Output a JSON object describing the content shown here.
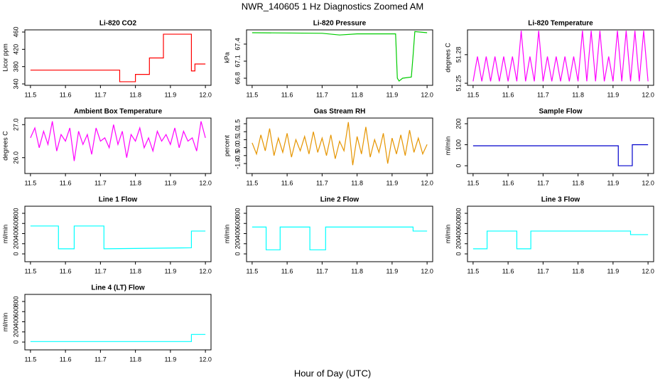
{
  "title": "NWR_140605  1 Hz Diagnostics Zoomed AM",
  "x_label": "Hour of Day (UTC)",
  "chart_data": [
    {
      "type": "line",
      "title": "Li-820 CO2",
      "y_label": "Licor ppm",
      "color": "#ff0000",
      "xlim": [
        11.484,
        12.016
      ],
      "xticks": [
        11.5,
        11.6,
        11.7,
        11.8,
        11.9,
        {
          "value": 12,
          "label": "12.0"
        }
      ],
      "ylim": [
        336.7,
        465
      ],
      "yticks": [
        340,
        380,
        420,
        460
      ],
      "x": [
        11.5,
        11.755,
        11.755,
        11.8,
        11.8,
        11.84,
        11.84,
        11.88,
        11.88,
        11.96,
        11.96,
        11.97,
        11.97,
        12.0
      ],
      "values": [
        372,
        372,
        345,
        345,
        362,
        362,
        400,
        400,
        455,
        455,
        370,
        370,
        386,
        386
      ]
    },
    {
      "type": "line",
      "title": "Li-820 Pressure",
      "y_label": "kPa",
      "color": "#00cc00",
      "xlim": [
        11.484,
        12.016
      ],
      "xticks": [
        11.5,
        11.6,
        11.7,
        11.8,
        11.9,
        {
          "value": 12,
          "label": "12.0"
        }
      ],
      "ylim": [
        66.675,
        67.65
      ],
      "yticks": [
        66.8,
        67.1,
        67.4
      ],
      "x": [
        11.5,
        11.7,
        11.75,
        11.8,
        11.91,
        11.915,
        11.92,
        11.93,
        11.955,
        11.96,
        11.965,
        12.0
      ],
      "values": [
        67.6,
        67.59,
        67.56,
        67.58,
        67.58,
        66.8,
        66.75,
        66.8,
        66.82,
        67.2,
        67.62,
        67.6
      ]
    },
    {
      "type": "line",
      "title": "Li-820 Temperature",
      "y_label": "degrees C",
      "color": "#ff00ff",
      "xlim": [
        11.484,
        12.016
      ],
      "xticks": [
        11.5,
        11.6,
        11.7,
        11.8,
        11.9,
        {
          "value": 12,
          "label": "12.0"
        }
      ],
      "ylim": [
        51.2478,
        51.306
      ],
      "yticks": [
        51.25,
        51.28
      ],
      "x": [
        11.5,
        11.5125,
        11.525,
        11.5375,
        11.55,
        11.5625,
        11.575,
        11.5875,
        11.6,
        11.6125,
        11.625,
        11.6375,
        11.65,
        11.6625,
        11.675,
        11.6875,
        11.7,
        11.7125,
        11.725,
        11.7375,
        11.75,
        11.7625,
        11.775,
        11.7875,
        11.8,
        11.8125,
        11.825,
        11.8375,
        11.85,
        11.8625,
        11.875,
        11.8875,
        11.9,
        11.9125,
        11.925,
        11.9375,
        11.95,
        11.9625,
        11.975,
        11.9875,
        12.0
      ],
      "values": [
        51.252,
        51.278,
        51.252,
        51.278,
        51.252,
        51.278,
        51.252,
        51.278,
        51.252,
        51.278,
        51.252,
        51.305,
        51.252,
        51.278,
        51.252,
        51.305,
        51.252,
        51.278,
        51.252,
        51.278,
        51.252,
        51.278,
        51.252,
        51.278,
        51.252,
        51.305,
        51.252,
        51.305,
        51.252,
        51.305,
        51.252,
        51.278,
        51.252,
        51.305,
        51.252,
        51.305,
        51.252,
        51.305,
        51.252,
        51.305,
        51.252
      ]
    },
    {
      "type": "line",
      "title": "Ambient Box Temperature",
      "y_label": "degrees C",
      "color": "#ff00ff",
      "xlim": [
        11.484,
        12.016
      ],
      "xticks": [
        11.5,
        11.6,
        11.7,
        11.8,
        11.9,
        {
          "value": 12,
          "label": "12.0"
        }
      ],
      "ylim": [
        25.52,
        27.2
      ],
      "yticks": [
        {
          "value": 26,
          "label": "26.0"
        },
        {
          "value": 27,
          "label": "27.0"
        }
      ],
      "x": [
        11.5,
        11.5125,
        11.525,
        11.5375,
        11.55,
        11.5625,
        11.575,
        11.5875,
        11.6,
        11.6125,
        11.625,
        11.6375,
        11.65,
        11.6625,
        11.675,
        11.6875,
        11.7,
        11.7125,
        11.725,
        11.7375,
        11.75,
        11.7625,
        11.775,
        11.7875,
        11.8,
        11.8125,
        11.825,
        11.8375,
        11.85,
        11.8625,
        11.875,
        11.8875,
        11.9,
        11.9125,
        11.925,
        11.9375,
        11.95,
        11.9625,
        11.975,
        11.9875,
        12.0
      ],
      "values": [
        26.6,
        26.9,
        26.3,
        26.8,
        26.4,
        27.1,
        26.2,
        26.7,
        26.5,
        26.9,
        25.9,
        26.8,
        26.4,
        26.7,
        26.1,
        26.9,
        26.5,
        26.6,
        26.3,
        27.0,
        26.4,
        26.8,
        26.0,
        26.7,
        26.5,
        26.9,
        26.3,
        26.6,
        26.2,
        26.8,
        26.5,
        26.7,
        26.4,
        26.9,
        26.3,
        26.8,
        26.5,
        26.6,
        26.2,
        27.1,
        26.6
      ]
    },
    {
      "type": "line",
      "title": "Gas Stream RH",
      "y_label": "percent",
      "color": "#e69500",
      "xlim": [
        11.484,
        12.016
      ],
      "xticks": [
        11.5,
        11.6,
        11.7,
        11.8,
        11.9,
        {
          "value": 12,
          "label": "12.0"
        }
      ],
      "ylim": [
        -1.625,
        1.857
      ],
      "yticks": [
        {
          "value": -1,
          "label": "-1.0"
        },
        -0.5,
        {
          "value": 0,
          "label": "0.0"
        },
        0.5,
        {
          "value": 1,
          "label": "1.0"
        },
        1.5
      ],
      "x": [
        11.5,
        11.5125,
        11.525,
        11.5375,
        11.55,
        11.5625,
        11.575,
        11.5875,
        11.6,
        11.6125,
        11.625,
        11.6375,
        11.65,
        11.6625,
        11.675,
        11.6875,
        11.7,
        11.7125,
        11.725,
        11.7375,
        11.75,
        11.7625,
        11.775,
        11.7875,
        11.8,
        11.8125,
        11.825,
        11.8375,
        11.85,
        11.8625,
        11.875,
        11.8875,
        11.9,
        11.9125,
        11.925,
        11.9375,
        11.95,
        11.9625,
        11.975,
        11.9875,
        12.0
      ],
      "values": [
        0.3,
        -0.4,
        0.8,
        -0.2,
        1.2,
        -0.5,
        0.6,
        -0.3,
        0.9,
        -0.6,
        0.5,
        -0.2,
        0.7,
        -0.4,
        1.0,
        -0.3,
        0.6,
        -0.5,
        0.8,
        -0.7,
        0.4,
        -0.2,
        1.6,
        -1.1,
        0.7,
        -0.4,
        1.3,
        -0.6,
        0.5,
        -0.3,
        0.9,
        -1.0,
        0.6,
        -0.4,
        0.8,
        -0.5,
        1.1,
        -0.3,
        0.6,
        -0.4,
        0.2
      ]
    },
    {
      "type": "line",
      "title": "Sample Flow",
      "y_label": "ml/min",
      "color": "#0000cc",
      "xlim": [
        11.484,
        12.016
      ],
      "xticks": [
        11.5,
        11.6,
        11.7,
        11.8,
        11.9,
        {
          "value": 12,
          "label": "12.0"
        }
      ],
      "ylim": [
        -37,
        227
      ],
      "yticks": [
        0,
        100,
        200
      ],
      "x": [
        11.5,
        11.915,
        11.915,
        11.955,
        11.955,
        12.0
      ],
      "values": [
        95,
        95,
        0,
        0,
        100,
        100
      ]
    },
    {
      "type": "line",
      "title": "Line 1 Flow",
      "y_label": "ml/min",
      "color": "#00ffff",
      "xlim": [
        11.484,
        12.016
      ],
      "xticks": [
        11.5,
        11.6,
        11.7,
        11.8,
        11.9,
        {
          "value": 12,
          "label": "12.0"
        }
      ],
      "ylim": [
        -154,
        940
      ],
      "yticks": [
        0,
        200,
        400,
        600,
        800
      ],
      "x": [
        11.5,
        11.58,
        11.58,
        11.625,
        11.625,
        11.71,
        11.71,
        11.96,
        11.96,
        12.0
      ],
      "values": [
        550,
        550,
        100,
        100,
        550,
        550,
        100,
        120,
        450,
        450
      ]
    },
    {
      "type": "line",
      "title": "Line 2 Flow",
      "y_label": "ml/min",
      "color": "#00ffff",
      "xlim": [
        11.484,
        12.016
      ],
      "xticks": [
        11.5,
        11.6,
        11.7,
        11.8,
        11.9,
        {
          "value": 12,
          "label": "12.0"
        }
      ],
      "ylim": [
        -154,
        940
      ],
      "yticks": [
        0,
        200,
        400,
        600,
        800
      ],
      "x": [
        11.5,
        11.54,
        11.54,
        11.58,
        11.58,
        11.665,
        11.665,
        11.71,
        11.71,
        11.96,
        11.96,
        12.0
      ],
      "values": [
        530,
        530,
        80,
        80,
        530,
        530,
        80,
        80,
        530,
        530,
        450,
        450
      ]
    },
    {
      "type": "line",
      "title": "Line 3 Flow",
      "y_label": "ml/min",
      "color": "#00ffff",
      "xlim": [
        11.484,
        12.016
      ],
      "xticks": [
        11.5,
        11.6,
        11.7,
        11.8,
        11.9,
        {
          "value": 12,
          "label": "12.0"
        }
      ],
      "ylim": [
        -154,
        940
      ],
      "yticks": [
        0,
        200,
        400,
        600,
        800
      ],
      "x": [
        11.5,
        11.54,
        11.54,
        11.625,
        11.625,
        11.665,
        11.665,
        11.95,
        11.95,
        12.0
      ],
      "values": [
        100,
        100,
        450,
        450,
        100,
        100,
        450,
        450,
        380,
        380
      ]
    },
    {
      "type": "line",
      "title": "Line 4 (LT) Flow",
      "y_label": "ml/min",
      "color": "#00ffff",
      "xlim": [
        11.484,
        12.016
      ],
      "xticks": [
        11.5,
        11.6,
        11.7,
        11.8,
        11.9,
        {
          "value": 12,
          "label": "12.0"
        }
      ],
      "ylim": [
        -154,
        940
      ],
      "yticks": [
        0,
        200,
        400,
        600,
        800
      ],
      "x": [
        11.5,
        11.96,
        11.96,
        12.0
      ],
      "values": [
        10,
        10,
        150,
        150
      ]
    }
  ]
}
